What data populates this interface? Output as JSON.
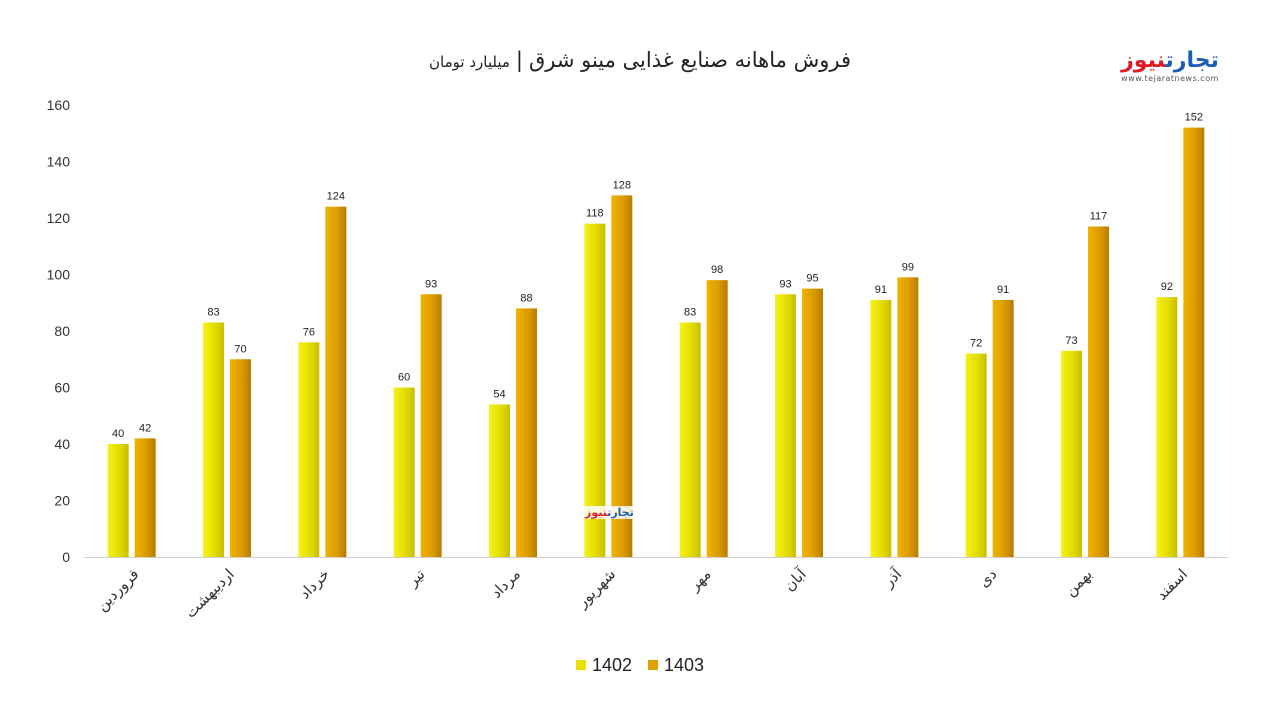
{
  "logo": {
    "text_a": "تجارت",
    "text_b": "نیوز",
    "url": "www.tejaratnews.com"
  },
  "chart_data": {
    "type": "bar",
    "title": "فروش ماهانه صنایع غذایی مینو شرق",
    "separator": "|",
    "subtitle": "میلیارد تومان",
    "categories": [
      "فروردین",
      "اردیبهشت",
      "خرداد",
      "تیر",
      "مرداد",
      "شهریور",
      "مهر",
      "آبان",
      "آذر",
      "دی",
      "بهمن",
      "اسفند"
    ],
    "series": [
      {
        "name": "1402",
        "color": "#e8e000",
        "values": [
          40,
          83,
          76,
          60,
          54,
          118,
          83,
          93,
          91,
          72,
          73,
          92
        ]
      },
      {
        "name": "1403",
        "color": "#e0a100",
        "values": [
          42,
          70,
          124,
          93,
          88,
          128,
          98,
          95,
          99,
          91,
          117,
          152
        ]
      }
    ],
    "yticks": [
      0,
      20,
      40,
      60,
      80,
      100,
      120,
      140,
      160
    ],
    "ylim": [
      0,
      160
    ],
    "grid": false,
    "legend_position": "bottom"
  }
}
